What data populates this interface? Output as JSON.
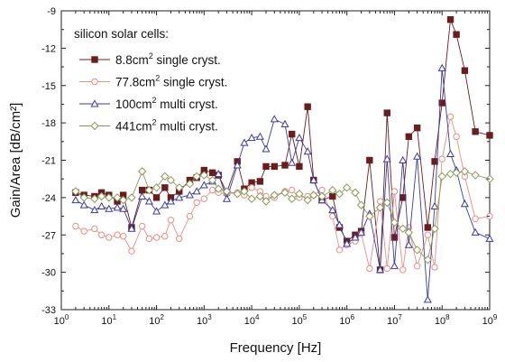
{
  "chart_data": {
    "type": "line",
    "title": "",
    "xlabel": "Frequency [Hz]",
    "ylabel": "Gain/Area [dB/cm²]",
    "x_scale": "log",
    "xlim": [
      1,
      1000000000
    ],
    "ylim": [
      -33,
      -9
    ],
    "grid": false,
    "legend_title": "silicon solar cells:",
    "legend_position": "top-left",
    "x_ticks": [
      {
        "value": 1,
        "base": "10",
        "exp": "0"
      },
      {
        "value": 10,
        "base": "10",
        "exp": "1"
      },
      {
        "value": 100,
        "base": "10",
        "exp": "2"
      },
      {
        "value": 1000,
        "base": "10",
        "exp": "3"
      },
      {
        "value": 10000,
        "base": "10",
        "exp": "4"
      },
      {
        "value": 100000,
        "base": "10",
        "exp": "5"
      },
      {
        "value": 1000000,
        "base": "10",
        "exp": "6"
      },
      {
        "value": 10000000,
        "base": "10",
        "exp": "7"
      },
      {
        "value": 100000000,
        "base": "10",
        "exp": "8"
      },
      {
        "value": 1000000000,
        "base": "10",
        "exp": "9"
      }
    ],
    "y_ticks": [
      {
        "value": -9,
        "label": "-9"
      },
      {
        "value": -12,
        "label": "-12"
      },
      {
        "value": -15,
        "label": "-15"
      },
      {
        "value": -18,
        "label": "-18"
      },
      {
        "value": -21,
        "label": "-21"
      },
      {
        "value": -24,
        "label": "-24"
      },
      {
        "value": -27,
        "label": "-27"
      },
      {
        "value": -30,
        "label": "-30"
      },
      {
        "value": -33,
        "label": "-33"
      }
    ],
    "series": [
      {
        "name": "8.8cm² single cryst.",
        "name_main": "8.8cm",
        "name_sup": "2",
        "name_rest": " single cryst.",
        "color": "#6b1d1d",
        "marker": "square-filled",
        "points": [
          [
            2,
            -23.6
          ],
          [
            3,
            -23.8
          ],
          [
            5,
            -23.9
          ],
          [
            7,
            -23.6
          ],
          [
            10,
            -23.8
          ],
          [
            15,
            -24.3
          ],
          [
            20,
            -23.8
          ],
          [
            30,
            -26.4
          ],
          [
            50,
            -23.4
          ],
          [
            70,
            -23.4
          ],
          [
            100,
            -24.0
          ],
          [
            150,
            -23.2
          ],
          [
            200,
            -24.0
          ],
          [
            300,
            -23.5
          ],
          [
            500,
            -22.6
          ],
          [
            700,
            -22.4
          ],
          [
            1000,
            -21.8
          ],
          [
            1500,
            -22.0
          ],
          [
            2000,
            -22.2
          ],
          [
            3000,
            -23.6
          ],
          [
            5000,
            -21.1
          ],
          [
            7000,
            -23.3
          ],
          [
            10000,
            -22.8
          ],
          [
            15000,
            -22.7
          ],
          [
            20000,
            -21.5
          ],
          [
            30000,
            -21.5
          ],
          [
            50000,
            -21.4
          ],
          [
            70000,
            -18.9
          ],
          [
            100000,
            -21.5
          ],
          [
            150000,
            -16.7
          ],
          [
            200000,
            -22.6
          ],
          [
            300000,
            -24.2
          ],
          [
            500000,
            -23.9
          ],
          [
            700000,
            -26.4
          ],
          [
            1000000,
            -27.5
          ],
          [
            1500000,
            -27.0
          ],
          [
            2000000,
            -26.7
          ],
          [
            3000000,
            -21.0
          ],
          [
            5000000,
            -29.8
          ],
          [
            7000000,
            -17.2
          ],
          [
            10000000,
            -27.2
          ],
          [
            15000000,
            -24.0
          ],
          [
            20000000,
            -19.1
          ],
          [
            30000000,
            -18.4
          ],
          [
            50000000,
            -26.4
          ],
          [
            70000000,
            -21.1
          ],
          [
            100000000,
            -16.4
          ],
          [
            150000000,
            -9.7
          ],
          [
            200000000,
            -10.9
          ],
          [
            300000000,
            -13.8
          ],
          [
            500000000,
            -18.7
          ],
          [
            1000000000,
            -19.0
          ]
        ]
      },
      {
        "name": "77.8cm² single cryst.",
        "name_main": "77.8cm",
        "name_sup": "2",
        "name_rest": " single cryst.",
        "color": "#e58f85",
        "marker": "circle-open",
        "points": [
          [
            2,
            -26.3
          ],
          [
            3,
            -26.7
          ],
          [
            5,
            -26.5
          ],
          [
            7,
            -27.0
          ],
          [
            10,
            -27.2
          ],
          [
            15,
            -27.0
          ],
          [
            20,
            -27.1
          ],
          [
            30,
            -28.3
          ],
          [
            50,
            -26.3
          ],
          [
            70,
            -27.3
          ],
          [
            100,
            -27.2
          ],
          [
            150,
            -27.1
          ],
          [
            200,
            -25.8
          ],
          [
            300,
            -27.3
          ],
          [
            500,
            -25.5
          ],
          [
            700,
            -24.4
          ],
          [
            1000,
            -24.1
          ],
          [
            1500,
            -23.4
          ],
          [
            2000,
            -23.6
          ],
          [
            3000,
            -23.7
          ],
          [
            5000,
            -23.6
          ],
          [
            7000,
            -23.8
          ],
          [
            10000,
            -23.2
          ],
          [
            15000,
            -23.5
          ],
          [
            20000,
            -23.9
          ],
          [
            30000,
            -24.0
          ],
          [
            50000,
            -23.5
          ],
          [
            70000,
            -23.4
          ],
          [
            100000,
            -24.0
          ],
          [
            150000,
            -23.9
          ],
          [
            200000,
            -23.8
          ],
          [
            300000,
            -23.4
          ],
          [
            500000,
            -25.5
          ],
          [
            700000,
            -28.2
          ],
          [
            1000000,
            -27.8
          ],
          [
            1500000,
            -27.5
          ],
          [
            2000000,
            -26.9
          ],
          [
            3000000,
            -29.7
          ],
          [
            5000000,
            -24.3
          ],
          [
            7000000,
            -29.7
          ],
          [
            10000000,
            -23.5
          ],
          [
            15000000,
            -29.8
          ],
          [
            20000000,
            -26.4
          ],
          [
            30000000,
            -29.5
          ],
          [
            50000000,
            -27.0
          ],
          [
            70000000,
            -29.6
          ],
          [
            100000000,
            -20.9
          ],
          [
            150000000,
            -17.5
          ],
          [
            200000000,
            -19.1
          ],
          [
            300000000,
            -22.3
          ],
          [
            500000000,
            -25.7
          ],
          [
            1000000000,
            -25.5
          ]
        ]
      },
      {
        "name": "100cm² multi cryst.",
        "name_main": "100cm",
        "name_sup": "2",
        "name_rest": " multi cryst.",
        "color": "#3a3aa6",
        "marker": "triangle-open",
        "points": [
          [
            2,
            -24.2
          ],
          [
            3,
            -24.6
          ],
          [
            5,
            -25.0
          ],
          [
            7,
            -24.7
          ],
          [
            10,
            -24.9
          ],
          [
            15,
            -24.8
          ],
          [
            20,
            -24.9
          ],
          [
            30,
            -26.5
          ],
          [
            50,
            -23.9
          ],
          [
            70,
            -24.3
          ],
          [
            100,
            -25.1
          ],
          [
            150,
            -24.6
          ],
          [
            200,
            -24.3
          ],
          [
            300,
            -24.0
          ],
          [
            500,
            -23.8
          ],
          [
            700,
            -23.5
          ],
          [
            1000,
            -23.0
          ],
          [
            1500,
            -22.7
          ],
          [
            2000,
            -22.1
          ],
          [
            3000,
            -24.1
          ],
          [
            5000,
            -21.4
          ],
          [
            7000,
            -19.6
          ],
          [
            10000,
            -19.2
          ],
          [
            15000,
            -19.1
          ],
          [
            20000,
            -20.1
          ],
          [
            30000,
            -17.7
          ],
          [
            50000,
            -18.1
          ],
          [
            70000,
            -21.2
          ],
          [
            100000,
            -19.2
          ],
          [
            150000,
            -20.3
          ],
          [
            200000,
            -22.6
          ],
          [
            300000,
            -24.2
          ],
          [
            500000,
            -25.0
          ],
          [
            700000,
            -26.2
          ],
          [
            1000000,
            -27.7
          ],
          [
            1500000,
            -27.2
          ],
          [
            2000000,
            -26.8
          ],
          [
            3000000,
            -25.3
          ],
          [
            5000000,
            -29.8
          ],
          [
            7000000,
            -20.9
          ],
          [
            10000000,
            -29.5
          ],
          [
            15000000,
            -21.0
          ],
          [
            20000000,
            -27.8
          ],
          [
            30000000,
            -20.7
          ],
          [
            50000000,
            -32.2
          ],
          [
            70000000,
            -24.7
          ],
          [
            100000000,
            -13.6
          ],
          [
            150000000,
            -20.5
          ],
          [
            200000000,
            -21.8
          ],
          [
            300000000,
            -24.5
          ],
          [
            500000000,
            -26.8
          ],
          [
            1000000000,
            -27.3
          ]
        ]
      },
      {
        "name": "441cm² multi cryst.",
        "name_main": "441cm",
        "name_sup": "2",
        "name_rest": " multi cryst.",
        "color": "#8a9a5b",
        "marker": "diamond-open",
        "points": [
          [
            2,
            -23.5
          ],
          [
            3,
            -24.0
          ],
          [
            5,
            -24.1
          ],
          [
            7,
            -23.9
          ],
          [
            10,
            -24.0
          ],
          [
            15,
            -24.0
          ],
          [
            20,
            -24.2
          ],
          [
            30,
            -24.0
          ],
          [
            50,
            -21.9
          ],
          [
            70,
            -23.4
          ],
          [
            100,
            -23.2
          ],
          [
            150,
            -22.3
          ],
          [
            200,
            -22.6
          ],
          [
            300,
            -23.2
          ],
          [
            500,
            -22.9
          ],
          [
            700,
            -22.3
          ],
          [
            1000,
            -22.2
          ],
          [
            1500,
            -22.6
          ],
          [
            2000,
            -23.3
          ],
          [
            3000,
            -23.5
          ],
          [
            5000,
            -23.7
          ],
          [
            7000,
            -23.5
          ],
          [
            10000,
            -24.1
          ],
          [
            15000,
            -23.9
          ],
          [
            20000,
            -24.3
          ],
          [
            30000,
            -23.8
          ],
          [
            50000,
            -23.6
          ],
          [
            70000,
            -24.1
          ],
          [
            100000,
            -23.7
          ],
          [
            150000,
            -24.2
          ],
          [
            200000,
            -23.8
          ],
          [
            300000,
            -23.9
          ],
          [
            500000,
            -23.4
          ],
          [
            700000,
            -23.7
          ],
          [
            1000000,
            -23.2
          ],
          [
            1500000,
            -23.6
          ],
          [
            2000000,
            -24.6
          ],
          [
            3000000,
            -25.5
          ],
          [
            5000000,
            -24.8
          ],
          [
            7000000,
            -24.4
          ],
          [
            10000000,
            -26.0
          ],
          [
            15000000,
            -26.5
          ],
          [
            20000000,
            -26.8
          ],
          [
            30000000,
            -28.2
          ],
          [
            50000000,
            -29.0
          ],
          [
            70000000,
            -26.5
          ],
          [
            100000000,
            -22.3
          ],
          [
            150000000,
            -22.1
          ],
          [
            200000000,
            -22.0
          ],
          [
            300000000,
            -21.9
          ],
          [
            500000000,
            -22.2
          ],
          [
            1000000000,
            -22.5
          ]
        ]
      }
    ]
  }
}
